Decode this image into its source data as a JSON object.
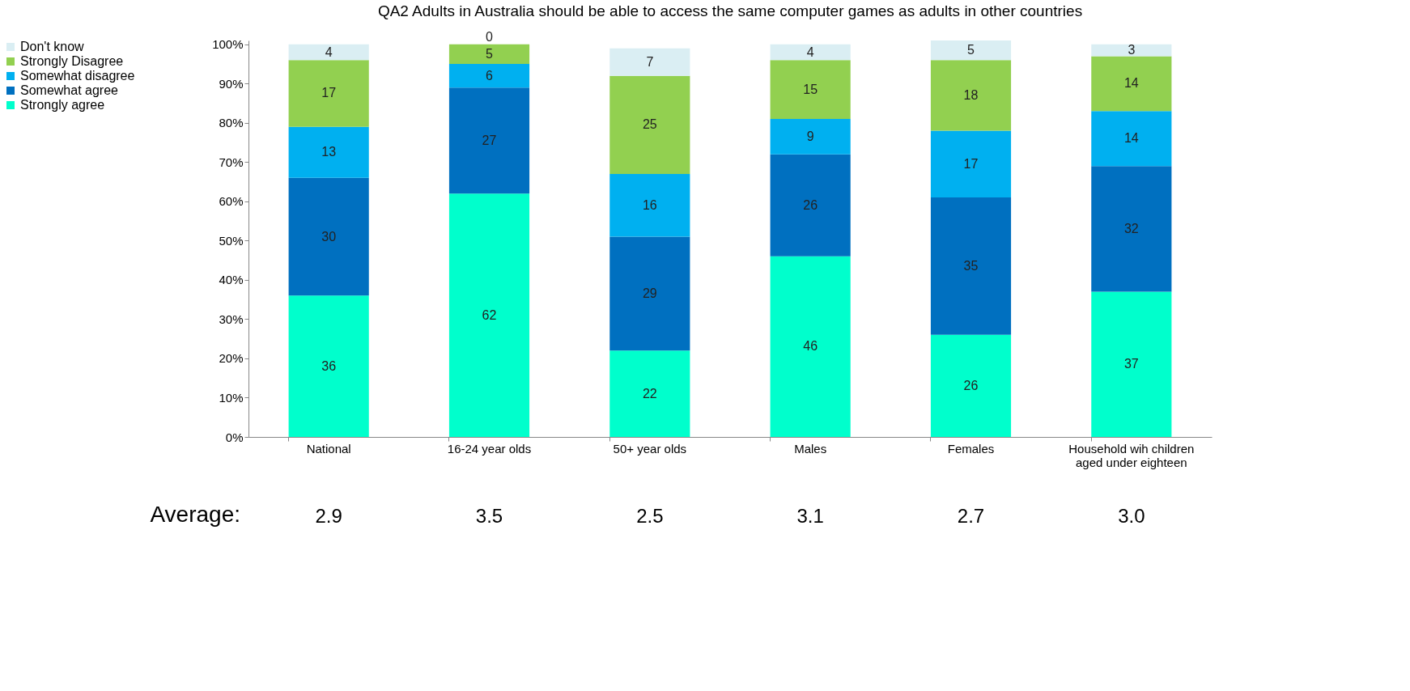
{
  "chart_data": {
    "type": "bar",
    "title": "QA2 Adults in  Australia should be able to access the same computer games as adults in other countries",
    "categories": [
      "National",
      "16-24 year olds",
      "50+ year olds",
      "Males",
      "Females",
      "Household wih children aged under eighteen"
    ],
    "series": [
      {
        "name": "Strongly agree",
        "color": "#00ffcc",
        "values": [
          36,
          62,
          22,
          46,
          26,
          37
        ]
      },
      {
        "name": "Somewhat agree",
        "color": "#0070c0",
        "values": [
          30,
          27,
          29,
          26,
          35,
          32
        ]
      },
      {
        "name": "Somewhat disagree",
        "color": "#00b0f0",
        "values": [
          13,
          6,
          16,
          9,
          17,
          14
        ]
      },
      {
        "name": "Strongly Disagree",
        "color": "#92d050",
        "values": [
          17,
          5,
          25,
          15,
          18,
          14
        ]
      },
      {
        "name": "Don't know",
        "color": "#daeef3",
        "values": [
          4,
          0,
          7,
          4,
          5,
          3
        ]
      }
    ],
    "stacked": true,
    "data_labels": true,
    "legend": "left",
    "grid": false,
    "ylim": [
      0,
      101
    ],
    "yticks": [
      {
        "value": 0,
        "label": "0%"
      },
      {
        "value": 10,
        "label": "10%"
      },
      {
        "value": 20,
        "label": "20%"
      },
      {
        "value": 30,
        "label": "30%"
      },
      {
        "value": 40,
        "label": "40%"
      },
      {
        "value": 50,
        "label": "50%"
      },
      {
        "value": 60,
        "label": "60%"
      },
      {
        "value": 70,
        "label": "70%"
      },
      {
        "value": 80,
        "label": "80%"
      },
      {
        "value": 90,
        "label": "90%"
      },
      {
        "value": 100,
        "label": "100%"
      }
    ],
    "annotations": [
      "Average:",
      "2.9",
      "3.5",
      "2.5",
      "3.1",
      "2.7",
      "3.0"
    ]
  }
}
